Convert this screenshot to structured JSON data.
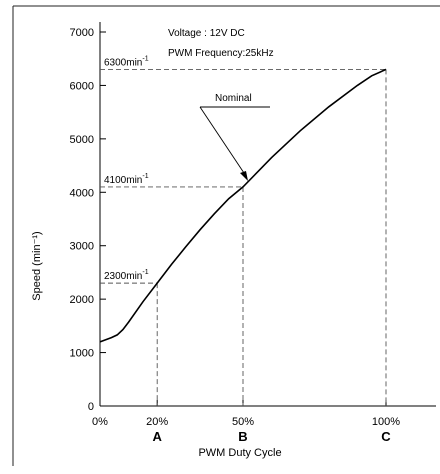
{
  "chart_data": {
    "type": "line",
    "annotation_lines": [
      "Voltage : 12V DC",
      "PWM Frequency:25kHz"
    ],
    "xlabel": "PWM Duty Cycle",
    "ylabel": "Speed (min⁻¹)",
    "xlim": [
      0,
      100
    ],
    "ylim": [
      0,
      7000
    ],
    "x_tick_labels": [
      {
        "value": 0,
        "label": "0%"
      },
      {
        "value": 20,
        "label": "20%"
      },
      {
        "value": 50,
        "label": "50%"
      },
      {
        "value": 100,
        "label": "100%"
      }
    ],
    "y_ticks": [
      0,
      1000,
      2000,
      3000,
      4000,
      5000,
      6000,
      7000
    ],
    "series": [
      {
        "x": [
          0,
          2,
          4,
          6,
          8,
          10,
          15,
          20,
          25,
          30,
          35,
          40,
          45,
          50,
          60,
          70,
          80,
          90,
          95,
          100
        ],
        "y": [
          1200,
          1240,
          1280,
          1330,
          1430,
          1570,
          1950,
          2300,
          2650,
          2980,
          3300,
          3600,
          3880,
          4100,
          4650,
          5150,
          5600,
          6000,
          6180,
          6300
        ]
      }
    ],
    "reference_points": [
      {
        "x": 20,
        "y": 2300,
        "label": "2300min",
        "sup": "-1",
        "letter": "A"
      },
      {
        "x": 50,
        "y": 4100,
        "label": "4100min",
        "sup": "-1",
        "letter": "B"
      },
      {
        "x": 100,
        "y": 6300,
        "label": "6300min",
        "sup": "-1",
        "letter": "C"
      }
    ],
    "callout": {
      "text": "Nominal",
      "x": 50,
      "y": 4100
    },
    "grid": false,
    "legend": "none"
  }
}
